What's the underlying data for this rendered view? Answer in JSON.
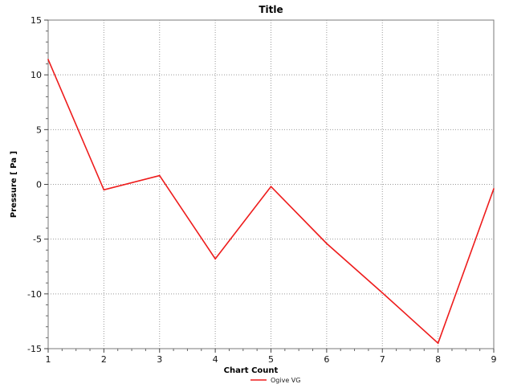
{
  "chart_data": {
    "type": "line",
    "title": "Title",
    "xlabel": "Chart Count",
    "ylabel": "Pressure [ Pa ]",
    "xlim": [
      1,
      9
    ],
    "ylim": [
      -15,
      15
    ],
    "x_ticks": [
      1,
      2,
      3,
      4,
      5,
      6,
      7,
      8,
      9
    ],
    "y_ticks": [
      -15,
      -10,
      -5,
      0,
      5,
      10,
      15
    ],
    "grid": true,
    "legend_position": "bottom-center",
    "x": [
      1,
      2,
      3,
      4,
      5,
      6,
      7,
      8,
      9
    ],
    "series": [
      {
        "name": "Ogive VG",
        "color": "#ee1c1c",
        "values": [
          11.4,
          -0.5,
          0.8,
          -6.8,
          -0.2,
          -5.4,
          -9.9,
          -14.5,
          -0.4
        ]
      }
    ]
  }
}
